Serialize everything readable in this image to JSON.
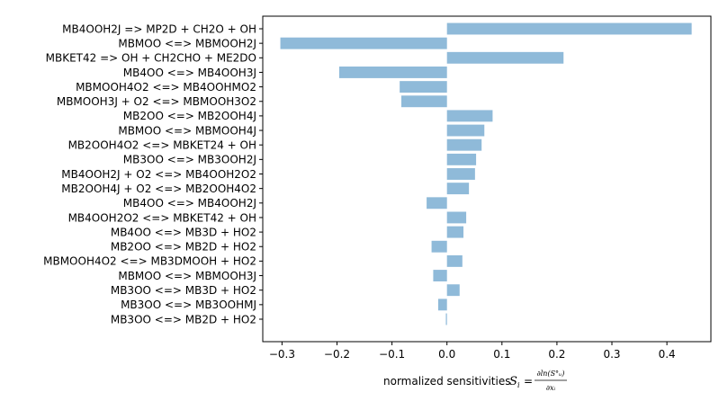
{
  "chart_data": {
    "type": "bar",
    "orientation": "horizontal",
    "title": "",
    "xlabel": "normalized sensitivities",
    "xlabel_formula": "S_i = ∂ln(S_u^o) / ∂x_i",
    "ylabel": "",
    "xlim": [
      -0.335,
      0.48
    ],
    "xticks": [
      -0.3,
      -0.2,
      -0.1,
      0.0,
      0.1,
      0.2,
      0.3,
      0.4
    ],
    "xtick_labels": [
      "−0.3",
      "−0.2",
      "−0.1",
      "0.0",
      "0.1",
      "0.2",
      "0.3",
      "0.4"
    ],
    "grid": false,
    "bar_color": "#8fbad9",
    "categories": [
      "MB4OOH2J => MP2D + CH2O + OH",
      "MBMOO <=> MBMOOH2J",
      "MBKET42 => OH + CH2CHO + ME2DO",
      "MB4OO <=> MB4OOH3J",
      "MBMOOH4O2 <=> MB4OOHMO2",
      "MBMOOH3J + O2 <=> MBMOOH3O2",
      "MB2OO <=> MB2OOH4J",
      "MBMOO <=> MBMOOH4J",
      "MB2OOH4O2 <=> MBKET24 + OH",
      "MB3OO <=> MB3OOH2J",
      "MB4OOH2J + O2 <=> MB4OOH2O2",
      "MB2OOH4J + O2 <=> MB2OOH4O2",
      "MB4OO <=> MB4OOH2J",
      "MB4OOH2O2 <=> MBKET42 + OH",
      "MB4OO <=> MB3D + HO2",
      "MB2OO <=> MB2D + HO2",
      "MBMOOH4O2 <=> MB3DMOOH + HO2",
      "MBMOO <=> MBMOOH3J",
      "MB3OO <=> MB3D + HO2",
      "MB3OO <=> MB3OOHMJ",
      "MB3OO <=> MB2D + HO2"
    ],
    "values": [
      0.445,
      -0.303,
      0.212,
      -0.196,
      -0.086,
      -0.083,
      0.083,
      0.068,
      0.063,
      0.053,
      0.051,
      0.04,
      -0.037,
      0.035,
      0.03,
      -0.028,
      0.028,
      -0.025,
      0.023,
      -0.016,
      -0.002
    ]
  }
}
